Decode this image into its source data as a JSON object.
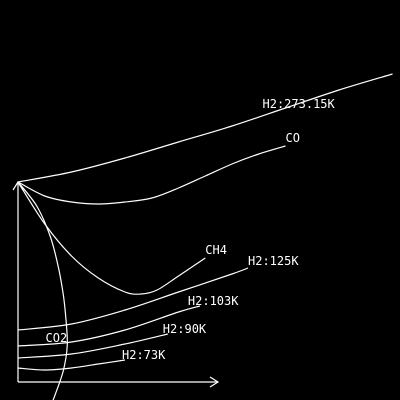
{
  "chart_data": {
    "type": "line",
    "title": "",
    "xlabel": "",
    "ylabel": "",
    "grid": false,
    "colors": {
      "background": "#000000",
      "stroke": "#ffffff"
    },
    "series": [
      {
        "name": "H2:273.15K",
        "x": [
          0,
          1,
          2,
          3,
          4,
          5,
          6,
          7
        ],
        "y": [
          10.0,
          10.5,
          11.2,
          12.0,
          12.8,
          13.7,
          14.6,
          15.4
        ]
      },
      {
        "name": "CO",
        "x": [
          0,
          0.5,
          1,
          1.5,
          2,
          2.5,
          3,
          3.5,
          4,
          4.5,
          5.0
        ],
        "y": [
          10.0,
          9.3,
          9.0,
          8.9,
          9.0,
          9.2,
          9.7,
          10.3,
          10.9,
          11.4,
          11.8
        ]
      },
      {
        "name": "CH4",
        "x": [
          0,
          0.5,
          1.0,
          1.5,
          2.0,
          2.3,
          2.6,
          3.0,
          3.5
        ],
        "y": [
          10.0,
          7.9,
          6.3,
          5.2,
          4.5,
          4.4,
          4.6,
          5.3,
          6.2
        ]
      },
      {
        "name": "H2:125K",
        "x": [
          0,
          1,
          2,
          3,
          4,
          4.3
        ],
        "y": [
          2.6,
          2.9,
          3.6,
          4.5,
          5.4,
          5.7
        ]
      },
      {
        "name": "H2:103K",
        "x": [
          0,
          1,
          2,
          3,
          3.4
        ],
        "y": [
          1.8,
          2.0,
          2.6,
          3.5,
          3.8
        ]
      },
      {
        "name": "H2:90K",
        "x": [
          0,
          1,
          2,
          2.8
        ],
        "y": [
          1.2,
          1.4,
          1.9,
          2.4
        ]
      },
      {
        "name": "H2:73K",
        "x": [
          0,
          0.5,
          1.0,
          1.5,
          2.0
        ],
        "y": [
          0.7,
          0.6,
          0.7,
          0.9,
          1.1
        ]
      },
      {
        "name": "CO2",
        "x": [
          0.0,
          0.35,
          0.6,
          0.75,
          0.85,
          0.9,
          0.92,
          0.85,
          0.7,
          0.55
        ],
        "y": [
          10.0,
          8.8,
          7.3,
          5.8,
          4.3,
          3.0,
          1.8,
          0.6,
          -0.6,
          -1.6
        ]
      }
    ],
    "labels": [
      {
        "series": "H2:273.15K",
        "text": "H2:273.15K"
      },
      {
        "series": "CO",
        "text": "CO"
      },
      {
        "series": "CH4",
        "text": "CH4"
      },
      {
        "series": "H2:125K",
        "text": "H2:125K"
      },
      {
        "series": "H2:103K",
        "text": "H2:103K"
      },
      {
        "series": "H2:90K",
        "text": "H2:90K"
      },
      {
        "series": "H2:73K",
        "text": "H2:73K"
      },
      {
        "series": "CO2",
        "text": "CO2"
      }
    ]
  }
}
